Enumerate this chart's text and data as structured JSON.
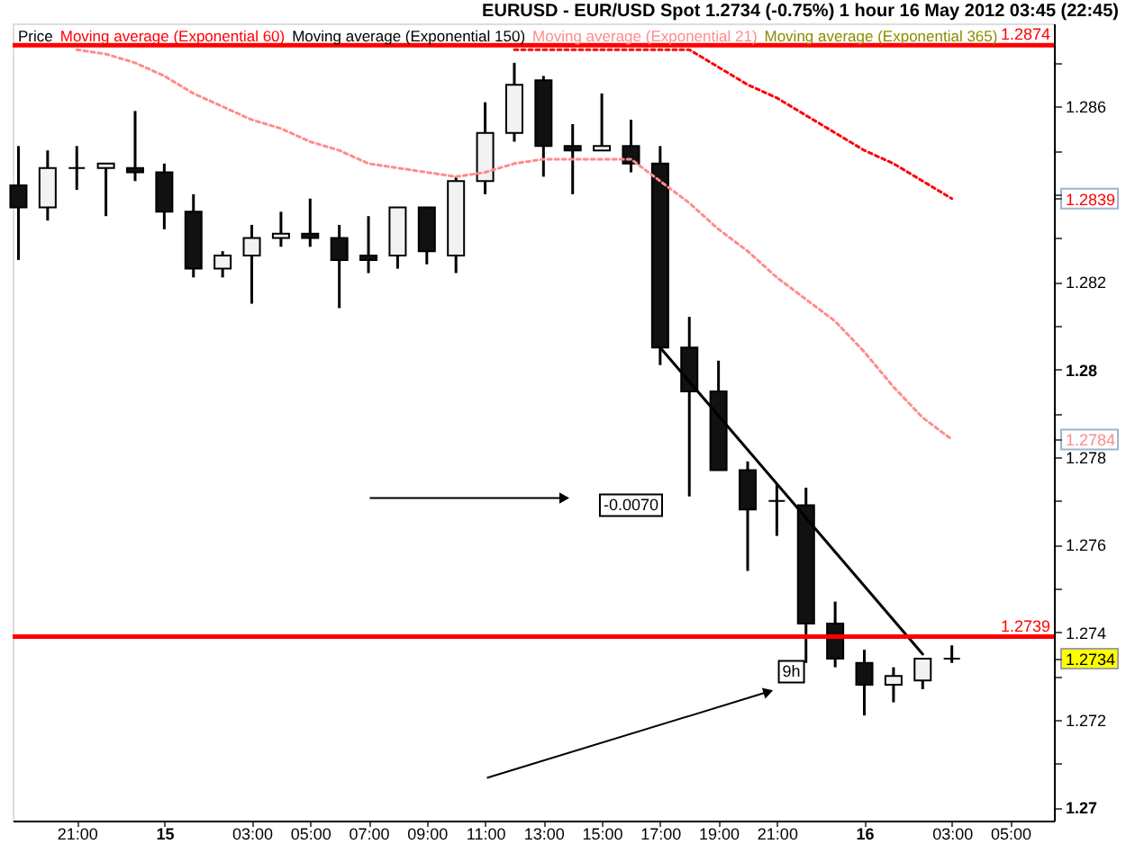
{
  "chart_data": {
    "type": "candlestick",
    "title": "EURUSD - EUR/USD Spot 1.2734 (-0.75%) 1 hour 16 May 2012 03:45 (22:45)",
    "x": [
      "2012-05-14T19:00",
      "2012-05-14T20:00",
      "2012-05-14T21:00",
      "2012-05-14T22:00",
      "2012-05-14T23:00",
      "2012-05-15T00:00",
      "2012-05-15T01:00",
      "2012-05-15T02:00",
      "2012-05-15T03:00",
      "2012-05-15T04:00",
      "2012-05-15T05:00",
      "2012-05-15T06:00",
      "2012-05-15T07:00",
      "2012-05-15T08:00",
      "2012-05-15T09:00",
      "2012-05-15T10:00",
      "2012-05-15T11:00",
      "2012-05-15T12:00",
      "2012-05-15T13:00",
      "2012-05-15T14:00",
      "2012-05-15T15:00",
      "2012-05-15T16:00",
      "2012-05-15T17:00",
      "2012-05-15T18:00",
      "2012-05-15T19:00",
      "2012-05-15T20:00",
      "2012-05-15T21:00",
      "2012-05-15T22:00",
      "2012-05-15T23:00",
      "2012-05-16T00:00",
      "2012-05-16T01:00",
      "2012-05-16T02:00",
      "2012-05-16T03:00"
    ],
    "series": [
      {
        "name": "Price",
        "color": "#000000",
        "ohlc": [
          [
            1.2842,
            1.2851,
            1.2825,
            1.2837
          ],
          [
            1.2837,
            1.285,
            1.2834,
            1.2846
          ],
          [
            1.2846,
            1.2851,
            1.2841,
            1.2846
          ],
          [
            1.2846,
            1.2847,
            1.2835,
            1.2847
          ],
          [
            1.2846,
            1.2859,
            1.2843,
            1.2845
          ],
          [
            1.2845,
            1.2847,
            1.2832,
            1.2836
          ],
          [
            1.2836,
            1.284,
            1.2821,
            1.2823
          ],
          [
            1.2823,
            1.2827,
            1.2821,
            1.2826
          ],
          [
            1.2826,
            1.2833,
            1.2815,
            1.283
          ],
          [
            1.283,
            1.2836,
            1.2828,
            1.2831
          ],
          [
            1.2831,
            1.2839,
            1.2828,
            1.283
          ],
          [
            1.283,
            1.2833,
            1.2814,
            1.2825
          ],
          [
            1.2826,
            1.2835,
            1.2822,
            1.2825
          ],
          [
            1.2826,
            1.2837,
            1.2823,
            1.2837
          ],
          [
            1.2837,
            1.2837,
            1.2824,
            1.2827
          ],
          [
            1.2826,
            1.2844,
            1.2822,
            1.2843
          ],
          [
            1.2843,
            1.2861,
            1.284,
            1.2854
          ],
          [
            1.2854,
            1.287,
            1.2852,
            1.2865
          ],
          [
            1.2866,
            1.2867,
            1.2844,
            1.2851
          ],
          [
            1.2851,
            1.2856,
            1.284,
            1.285
          ],
          [
            1.285,
            1.2863,
            1.285,
            1.2851
          ],
          [
            1.2851,
            1.2857,
            1.2845,
            1.2847
          ],
          [
            1.2847,
            1.2851,
            1.2801,
            1.2805
          ],
          [
            1.2805,
            1.2812,
            1.2771,
            1.2795
          ],
          [
            1.2795,
            1.2802,
            1.2777,
            1.2777
          ],
          [
            1.2777,
            1.2779,
            1.2754,
            1.2768
          ],
          [
            1.277,
            1.2774,
            1.2762,
            1.277
          ],
          [
            1.2769,
            1.2773,
            1.2733,
            1.2742
          ],
          [
            1.2742,
            1.2747,
            1.2732,
            1.2734
          ],
          [
            1.2733,
            1.2736,
            1.2721,
            1.2728
          ],
          [
            1.2728,
            1.2732,
            1.2724,
            1.273
          ],
          [
            1.2729,
            1.2734,
            1.2727,
            1.2734
          ],
          [
            1.2734,
            1.2737,
            1.2733,
            1.2734
          ]
        ],
        "colors": [
          "#111111",
          "#f2f2f2",
          "#000000",
          "#f2f2f2",
          "#111111",
          "#111111",
          "#111111",
          "#f2f2f2",
          "#f2f2f2",
          "#f2f2f2",
          "#111111",
          "#111111",
          "#111111",
          "#f2f2f2",
          "#111111",
          "#f2f2f2",
          "#f2f2f2",
          "#f2f2f2",
          "#111111",
          "#111111",
          "#f2f2f2",
          "#111111",
          "#111111",
          "#111111",
          "#111111",
          "#111111",
          "#000000",
          "#111111",
          "#111111",
          "#111111",
          "#f2f2f2",
          "#f2f2f2",
          "#000000"
        ]
      },
      {
        "name": "Moving average (Exponential 60)",
        "type": "line",
        "color": "#ff0000",
        "line_style": "dotted",
        "x": [
          "2012-05-15T12:00",
          "2012-05-15T13:00",
          "2012-05-15T14:00",
          "2012-05-15T15:00",
          "2012-05-15T16:00",
          "2012-05-15T17:00",
          "2012-05-15T18:00",
          "2012-05-15T19:00",
          "2012-05-15T20:00",
          "2012-05-15T21:00",
          "2012-05-15T22:00",
          "2012-05-15T23:00",
          "2012-05-16T00:00",
          "2012-05-16T01:00",
          "2012-05-16T02:00",
          "2012-05-16T03:00"
        ],
        "values": [
          1.2873,
          1.2873,
          1.2873,
          1.2873,
          1.2873,
          1.2873,
          1.2873,
          1.2869,
          1.2865,
          1.2862,
          1.2858,
          1.2854,
          1.285,
          1.2847,
          1.2843,
          1.2839
        ]
      },
      {
        "name": "Moving average (Exponential 150)",
        "type": "line",
        "color": "#000000",
        "values": [
          null,
          null,
          null,
          null,
          null,
          null,
          null,
          null,
          null,
          null,
          null,
          null,
          null,
          null,
          null,
          null,
          null,
          null,
          null,
          null,
          null,
          null,
          null,
          null,
          null,
          null,
          null,
          null,
          null,
          null,
          null,
          null,
          null
        ]
      },
      {
        "name": "Moving average (Exponential 21)",
        "type": "line",
        "color": "#ff8c8c",
        "line_style": "dotted",
        "x": [
          "2012-05-14T21:00",
          "2012-05-14T22:00",
          "2012-05-14T23:00",
          "2012-05-15T00:00",
          "2012-05-15T01:00",
          "2012-05-15T02:00",
          "2012-05-15T03:00",
          "2012-05-15T04:00",
          "2012-05-15T05:00",
          "2012-05-15T06:00",
          "2012-05-15T07:00",
          "2012-05-15T08:00",
          "2012-05-15T09:00",
          "2012-05-15T10:00",
          "2012-05-15T11:00",
          "2012-05-15T12:00",
          "2012-05-15T13:00",
          "2012-05-15T14:00",
          "2012-05-15T15:00",
          "2012-05-15T16:00",
          "2012-05-15T17:00",
          "2012-05-15T18:00",
          "2012-05-15T19:00",
          "2012-05-15T20:00",
          "2012-05-15T21:00",
          "2012-05-15T22:00",
          "2012-05-15T23:00",
          "2012-05-16T00:00",
          "2012-05-16T01:00",
          "2012-05-16T02:00",
          "2012-05-16T03:00"
        ],
        "values": [
          1.2873,
          1.2872,
          1.287,
          1.2867,
          1.2863,
          1.286,
          1.2857,
          1.2855,
          1.2852,
          1.285,
          1.2847,
          1.2846,
          1.2845,
          1.2844,
          1.2845,
          1.2847,
          1.2848,
          1.2848,
          1.2848,
          1.2848,
          1.2843,
          1.2838,
          1.2832,
          1.2827,
          1.2821,
          1.2816,
          1.2811,
          1.2804,
          1.2796,
          1.2789,
          1.2784
        ]
      },
      {
        "name": "Moving average (Exponential 365)",
        "type": "line",
        "color": "#8c8c00",
        "values": [
          null,
          null,
          null,
          null,
          null,
          null,
          null,
          null,
          null,
          null,
          null,
          null,
          null,
          null,
          null,
          null,
          null,
          null,
          null,
          null,
          null,
          null,
          null,
          null,
          null,
          null,
          null,
          null,
          null,
          null,
          null,
          null,
          null
        ]
      },
      {
        "type": "line",
        "color": "#000000",
        "line_style": "solid",
        "x": [
          "2012-05-15T17:00",
          "2012-05-16T02:00"
        ],
        "values": [
          1.2805,
          1.2735
        ]
      }
    ],
    "xlim": [
      "2012-05-14T18:48",
      "2012-05-16T06:30"
    ],
    "xticks": [
      {
        "value": "2012-05-14T21:00",
        "label": "21:00"
      },
      {
        "value": "2012-05-15T00:00",
        "label": "15"
      },
      {
        "value": "2012-05-15T03:00",
        "label": "03:00"
      },
      {
        "value": "2012-05-15T05:00",
        "label": "05:00"
      },
      {
        "value": "2012-05-15T07:00",
        "label": "07:00"
      },
      {
        "value": "2012-05-15T09:00",
        "label": "09:00"
      },
      {
        "value": "2012-05-15T11:00",
        "label": "11:00"
      },
      {
        "value": "2012-05-15T13:00",
        "label": "13:00"
      },
      {
        "value": "2012-05-15T15:00",
        "label": "15:00"
      },
      {
        "value": "2012-05-15T17:00",
        "label": "17:00"
      },
      {
        "value": "2012-05-15T19:00",
        "label": "19:00"
      },
      {
        "value": "2012-05-15T21:00",
        "label": "21:00"
      },
      {
        "value": "2012-05-16T00:00",
        "label": "16"
      },
      {
        "value": "2012-05-16T03:00",
        "label": "03:00"
      },
      {
        "value": "2012-05-16T05:00",
        "label": "05:00"
      }
    ],
    "ylim": [
      1.2697,
      1.2879
    ],
    "yticks": [
      1.27,
      {
        "value": 1.271,
        "label": null
      },
      1.272,
      {
        "value": 1.273,
        "label": null
      },
      1.2734,
      1.274,
      {
        "value": 1.275,
        "label": null
      },
      1.276,
      {
        "value": 1.277,
        "label": null
      },
      1.278,
      1.2784,
      {
        "value": 1.279,
        "label": null
      },
      1.28,
      {
        "value": 1.281,
        "label": null
      },
      1.282,
      {
        "value": 1.283,
        "label": null
      },
      1.2839,
      {
        "value": 1.284,
        "label": null
      },
      {
        "value": 1.285,
        "label": null
      },
      1.286,
      {
        "value": 1.287,
        "label": null
      }
    ],
    "ref_lines": [
      {
        "axis": "y",
        "value": 1.2874,
        "label": "1.2874",
        "color": "#ff0000"
      },
      {
        "axis": "y",
        "value": 1.2739,
        "label": "1.2739",
        "color": "#ff0000"
      }
    ],
    "annotations": [
      {
        "text": "-0.0070",
        "x": "2012-05-15T16:00",
        "y": 1.2769
      },
      {
        "text": "9h",
        "x": "2012-05-15T21:30",
        "y": 1.2731
      }
    ],
    "legend": "top left"
  }
}
